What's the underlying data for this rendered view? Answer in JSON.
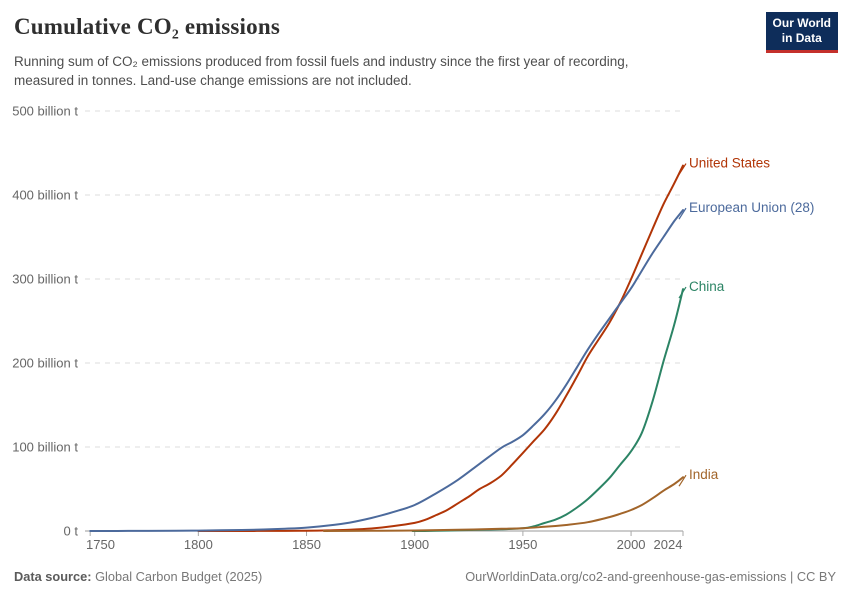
{
  "header": {
    "title": "Cumulative CO₂ emissions",
    "subtitle_lines": [
      "Running sum of CO₂ emissions produced from fossil fuels and industry since the first year of recording,",
      "measured in tonnes. Land-use change emissions are not included."
    ],
    "logo": {
      "line1": "Our World",
      "line2": "in Data",
      "bg_color": "#0e2d5a",
      "accent_color": "#c4302b"
    }
  },
  "footer": {
    "source_label": "Data source:",
    "source_value": " Global Carbon Budget (2025)",
    "link": "OurWorldinData.org/co2-and-greenhouse-gas-emissions | CC BY"
  },
  "chart_data": {
    "type": "line",
    "title": "Cumulative CO₂ emissions",
    "xlabel": "",
    "ylabel": "",
    "unit": "billion tonnes CO₂",
    "grid": "horizontal dashed",
    "legend_position": "right-end-labels",
    "x_axis": {
      "range": [
        1749,
        2024
      ],
      "ticks": [
        1750,
        1800,
        1850,
        1900,
        1950,
        2000,
        2024
      ]
    },
    "y_axis": {
      "range": [
        0,
        500
      ],
      "tick_values": [
        0,
        100,
        200,
        300,
        400,
        500
      ],
      "tick_labels": [
        "0 t",
        "100 billion t",
        "200 billion t",
        "300 billion t",
        "400 billion t",
        "500 billion t"
      ]
    },
    "series": [
      {
        "name": "United States",
        "color": "#B13507",
        "end_value": 435,
        "points": [
          [
            1800,
            0
          ],
          [
            1820,
            0.05
          ],
          [
            1840,
            0.15
          ],
          [
            1850,
            0.3
          ],
          [
            1860,
            0.7
          ],
          [
            1870,
            1.5
          ],
          [
            1880,
            3
          ],
          [
            1890,
            5.8
          ],
          [
            1900,
            9.7
          ],
          [
            1905,
            13.5
          ],
          [
            1910,
            19
          ],
          [
            1915,
            25
          ],
          [
            1920,
            33
          ],
          [
            1925,
            41
          ],
          [
            1930,
            50
          ],
          [
            1935,
            57
          ],
          [
            1940,
            66
          ],
          [
            1945,
            79
          ],
          [
            1950,
            93
          ],
          [
            1955,
            107
          ],
          [
            1960,
            121
          ],
          [
            1965,
            139
          ],
          [
            1970,
            161
          ],
          [
            1975,
            184
          ],
          [
            1980,
            208
          ],
          [
            1985,
            228
          ],
          [
            1990,
            248
          ],
          [
            1995,
            272
          ],
          [
            2000,
            300
          ],
          [
            2005,
            330
          ],
          [
            2010,
            360
          ],
          [
            2015,
            389
          ],
          [
            2020,
            414
          ],
          [
            2024,
            435
          ]
        ]
      },
      {
        "name": "European Union (28)",
        "color": "#4C6A9C",
        "end_value": 382,
        "points": [
          [
            1750,
            0
          ],
          [
            1770,
            0.1
          ],
          [
            1790,
            0.3
          ],
          [
            1800,
            0.5
          ],
          [
            1810,
            0.8
          ],
          [
            1820,
            1.2
          ],
          [
            1830,
            1.8
          ],
          [
            1840,
            2.7
          ],
          [
            1850,
            4
          ],
          [
            1860,
            6.5
          ],
          [
            1870,
            10
          ],
          [
            1880,
            15.5
          ],
          [
            1890,
            22.5
          ],
          [
            1900,
            31
          ],
          [
            1910,
            45
          ],
          [
            1920,
            61
          ],
          [
            1930,
            80
          ],
          [
            1940,
            99
          ],
          [
            1945,
            106
          ],
          [
            1950,
            114
          ],
          [
            1955,
            126
          ],
          [
            1960,
            139
          ],
          [
            1965,
            155
          ],
          [
            1970,
            174
          ],
          [
            1975,
            195
          ],
          [
            1980,
            216
          ],
          [
            1985,
            235
          ],
          [
            1990,
            253
          ],
          [
            1995,
            271
          ],
          [
            2000,
            289
          ],
          [
            2005,
            310
          ],
          [
            2010,
            331
          ],
          [
            2015,
            350
          ],
          [
            2020,
            369
          ],
          [
            2024,
            382
          ]
        ]
      },
      {
        "name": "China",
        "color": "#2C8465",
        "end_value": 288,
        "points": [
          [
            1899,
            0
          ],
          [
            1910,
            0.3
          ],
          [
            1920,
            0.8
          ],
          [
            1930,
            1.4
          ],
          [
            1940,
            2.2
          ],
          [
            1950,
            3.2
          ],
          [
            1955,
            5.5
          ],
          [
            1960,
            9.5
          ],
          [
            1965,
            13.5
          ],
          [
            1970,
            19.5
          ],
          [
            1975,
            28
          ],
          [
            1980,
            38
          ],
          [
            1985,
            50
          ],
          [
            1990,
            63
          ],
          [
            1995,
            79
          ],
          [
            2000,
            95
          ],
          [
            2005,
            117
          ],
          [
            2010,
            155
          ],
          [
            2015,
            202
          ],
          [
            2020,
            246
          ],
          [
            2024,
            288
          ]
        ]
      },
      {
        "name": "India",
        "color": "#A2652A",
        "end_value": 64,
        "points": [
          [
            1858,
            0
          ],
          [
            1880,
            0.2
          ],
          [
            1900,
            0.6
          ],
          [
            1920,
            1.4
          ],
          [
            1940,
            2.6
          ],
          [
            1950,
            3.3
          ],
          [
            1960,
            5
          ],
          [
            1970,
            7.2
          ],
          [
            1980,
            10.5
          ],
          [
            1990,
            16.5
          ],
          [
            1995,
            20.5
          ],
          [
            2000,
            25
          ],
          [
            2005,
            31
          ],
          [
            2010,
            39
          ],
          [
            2015,
            48
          ],
          [
            2020,
            56
          ],
          [
            2024,
            64
          ]
        ]
      }
    ],
    "style": {
      "gridline_color": "#dcdcdc",
      "axis_color": "#999999",
      "tick_color": "#aaaaaa",
      "axis_label_color": "#666666"
    }
  }
}
